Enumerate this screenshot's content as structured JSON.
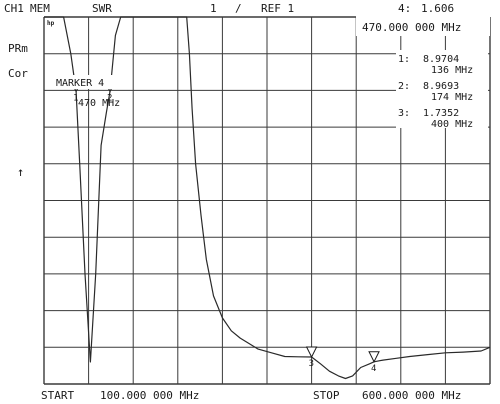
{
  "header": {
    "channel": "CH1",
    "mem": "MEM",
    "format": "SWR",
    "scale_div": "1",
    "slash": "/",
    "ref": "REF 1",
    "active_marker_label": "4:",
    "active_marker_value": "1.606",
    "active_marker_freq": "470.000 000 MHz"
  },
  "side_labels": {
    "prm": "PRm",
    "cor": "Cor",
    "ref_arrow": "↑",
    "hp_logo": "hp"
  },
  "marker_box": {
    "title": "MARKER 4",
    "freq": "470 MHz"
  },
  "marker_list": [
    {
      "label": "1:",
      "value": "8.9704",
      "freq": "136 MHz"
    },
    {
      "label": "2:",
      "value": "8.9693",
      "freq": "174 MHz"
    },
    {
      "label": "3:",
      "value": "1.7352",
      "freq": "400 MHz"
    }
  ],
  "footer": {
    "start_label": "START",
    "start_value": "100.000 000 MHz",
    "stop_label": "STOP",
    "stop_value": "600.000 000 MHz"
  },
  "chart_data": {
    "type": "line",
    "title": "",
    "xlabel": "",
    "ylabel": "",
    "xlim": [
      100,
      600
    ],
    "ylim": [
      1,
      11
    ],
    "x_unit": "MHz",
    "grid": true,
    "marker_symbols": [
      {
        "id": "1",
        "x": 136,
        "y": 8.9704
      },
      {
        "id": "2",
        "x": 174,
        "y": 8.9693
      },
      {
        "id": "3",
        "x": 400,
        "y": 1.7352
      },
      {
        "id": "4",
        "x": 470,
        "y": 1.606
      }
    ],
    "series": [
      {
        "x": [
          100,
          110,
          122,
          130,
          136,
          140,
          146,
          152,
          158,
          164,
          170,
          174,
          180,
          186,
          190,
          194,
          260,
          263,
          266,
          270,
          276,
          282,
          290,
          300,
          310,
          320,
          330,
          340,
          355,
          370,
          385,
          400,
          410,
          420,
          430,
          438,
          446,
          455,
          465,
          470,
          480,
          495,
          510,
          530,
          550,
          570,
          590,
          600
        ],
        "y": [
          11,
          11,
          11,
          10,
          8.97,
          7,
          4,
          1.6,
          4,
          7.5,
          8.4,
          8.97,
          10.5,
          11,
          11,
          11,
          11,
          10,
          8.5,
          7,
          5.6,
          4.4,
          3.4,
          2.8,
          2.45,
          2.25,
          2.1,
          1.95,
          1.85,
          1.75,
          1.74,
          1.7352,
          1.55,
          1.35,
          1.22,
          1.15,
          1.22,
          1.45,
          1.55,
          1.606,
          1.65,
          1.7,
          1.75,
          1.8,
          1.85,
          1.87,
          1.9,
          2.0
        ]
      }
    ]
  }
}
